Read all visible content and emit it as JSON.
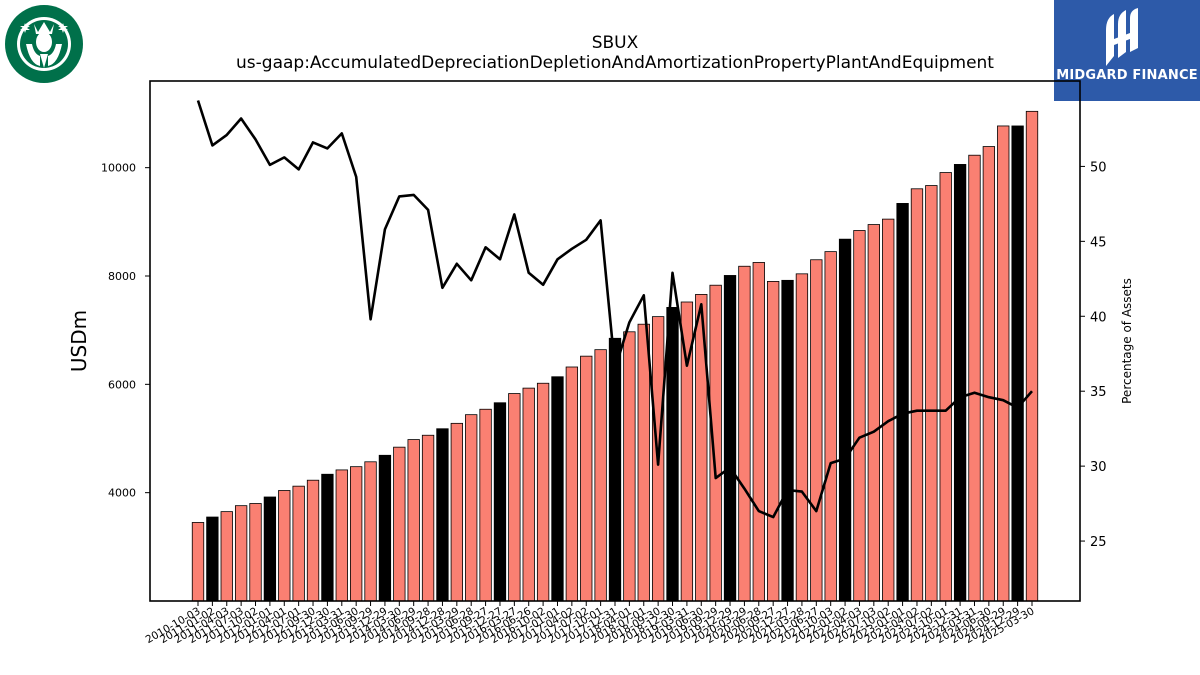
{
  "logos": {
    "left_company": "Starbucks",
    "right_text": "MIDGARD FINANCE"
  },
  "chart_data": {
    "type": "bar",
    "title": "SBUX",
    "subtitle": "us-gaap:AccumulatedDepreciationDepletionAndAmortizationPropertyPlantAndEquipment",
    "ylabel": "USDm",
    "y2label": "Percentage of Assets",
    "ylim": [
      2000,
      11600
    ],
    "y2lim": [
      21,
      55.7
    ],
    "yticks": [
      4000,
      6000,
      8000,
      10000
    ],
    "y2ticks": [
      25,
      30,
      35,
      40,
      45,
      50
    ],
    "grid": false,
    "legend": "none",
    "colors": {
      "bar": "#fa8072",
      "bar_highlight": "#000000",
      "line": "#000000"
    },
    "categories": [
      "2010-10-03",
      "2011-01-02",
      "2011-04-03",
      "2011-07-03",
      "2011-10-02",
      "2012-01-01",
      "2012-04-01",
      "2012-07-01",
      "2012-09-30",
      "2012-12-30",
      "2013-03-31",
      "2013-06-30",
      "2013-09-29",
      "2013-12-29",
      "2014-03-30",
      "2014-06-29",
      "2014-09-28",
      "2014-12-28",
      "2015-03-29",
      "2015-06-28",
      "2015-09-27",
      "2015-12-27",
      "2016-03-27",
      "2016-06-26",
      "2016-10-02",
      "2017-01-01",
      "2017-04-02",
      "2017-07-02",
      "2017-10-01",
      "2017-12-31",
      "2018-04-01",
      "2018-07-01",
      "2018-09-30",
      "2018-12-30",
      "2019-03-31",
      "2019-06-30",
      "2019-09-29",
      "2019-12-29",
      "2020-03-29",
      "2020-06-28",
      "2020-09-27",
      "2020-12-27",
      "2021-03-28",
      "2021-06-27",
      "2021-10-03",
      "2022-01-02",
      "2022-04-03",
      "2022-07-03",
      "2022-10-02",
      "2023-01-01",
      "2023-04-02",
      "2023-07-02",
      "2023-10-01",
      "2023-12-31",
      "2024-03-31",
      "2024-06-30",
      "2024-09-29",
      "2024-12-29",
      "2025-03-30"
    ],
    "tick_labels": [
      "2010-10-03",
      "2011-01-02",
      "2011-04-03",
      "2011-07-03",
      "2011-10-02",
      "2012-01-01",
      "2012-04-01",
      "2012-07-01",
      "2012-09-30",
      "2012-12-30",
      "2013-03-31",
      "2013-06-30",
      "2013-09-29",
      "2013-12-29",
      "2014-03-30",
      "2014-06-29",
      "2014-09-28",
      "2014-12-28",
      "2015-03-29",
      "2015-06-28",
      "2015-09-27",
      "2015-12-27",
      "2016-03-27",
      "2016-06-26",
      "2016-10-02",
      "2017-01-01",
      "2017-04-02",
      "2017-07-02",
      "2017-10-01",
      "2017-12-31",
      "2018-04-01",
      "2018-07-01",
      "2018-09-30",
      "2018-12-30",
      "2019-03-31",
      "2019-06-30",
      "2019-09-29",
      "2019-12-29",
      "2020-03-29",
      "2020-06-28",
      "2020-09-27",
      "2020-12-27",
      "2021-03-28",
      "2021-06-27",
      "2021-10-03",
      "2022-01-02",
      "2022-04-03",
      "2022-07-03",
      "2022-10-02",
      "2023-01-01",
      "2023-04-02",
      "2023-07-02",
      "2023-10-01",
      "2023-12-31",
      "2024-03-31",
      "2024-06-30",
      "2024-09-29",
      "2024-12-29",
      "2025-03-30"
    ],
    "highlight": [
      false,
      true,
      false,
      false,
      false,
      true,
      false,
      false,
      false,
      true,
      false,
      false,
      false,
      true,
      false,
      false,
      false,
      true,
      false,
      false,
      false,
      true,
      false,
      false,
      false,
      true,
      false,
      false,
      false,
      true,
      false,
      false,
      false,
      true,
      false,
      false,
      false,
      true,
      false,
      false,
      false,
      true,
      false,
      false,
      false,
      true,
      false,
      false,
      false,
      true,
      false,
      false,
      false,
      true,
      false,
      false,
      false,
      true,
      false
    ],
    "series": [
      {
        "type": "bar",
        "axis": "left",
        "values": [
          3450,
          3550,
          3650,
          3760,
          3800,
          3920,
          4040,
          4120,
          4230,
          4340,
          4420,
          4480,
          4570,
          4690,
          4840,
          4980,
          5060,
          5180,
          5280,
          5440,
          5540,
          5660,
          5830,
          5930,
          6020,
          6140,
          6320,
          6520,
          6640,
          6850,
          6970,
          7110,
          7250,
          7420,
          7520,
          7660,
          7830,
          8010,
          8180,
          8250,
          7900,
          7920,
          8040,
          8300,
          8450,
          8680,
          8840,
          8950,
          9050,
          9340,
          9610,
          9670,
          9910,
          10060,
          10230,
          10390,
          10770,
          10770,
          11040
        ]
      },
      {
        "type": "line",
        "axis": "right",
        "values": [
          54.4,
          51.4,
          52.1,
          53.2,
          51.8,
          50.1,
          50.6,
          49.8,
          51.6,
          51.2,
          52.2,
          49.3,
          39.8,
          45.8,
          48.0,
          48.1,
          47.1,
          41.9,
          43.5,
          42.4,
          44.6,
          43.8,
          46.8,
          42.9,
          42.1,
          43.8,
          44.5,
          45.1,
          46.4,
          36.5,
          39.6,
          41.4,
          30.1,
          42.9,
          36.7,
          40.8,
          29.2,
          29.9,
          28.5,
          27.0,
          26.6,
          28.4,
          28.3,
          27.0,
          30.2,
          30.5,
          31.9,
          32.3,
          33.0,
          33.5,
          33.7,
          33.7,
          33.7,
          34.6,
          34.9,
          34.6,
          34.4,
          33.9,
          35.0
        ]
      }
    ]
  }
}
